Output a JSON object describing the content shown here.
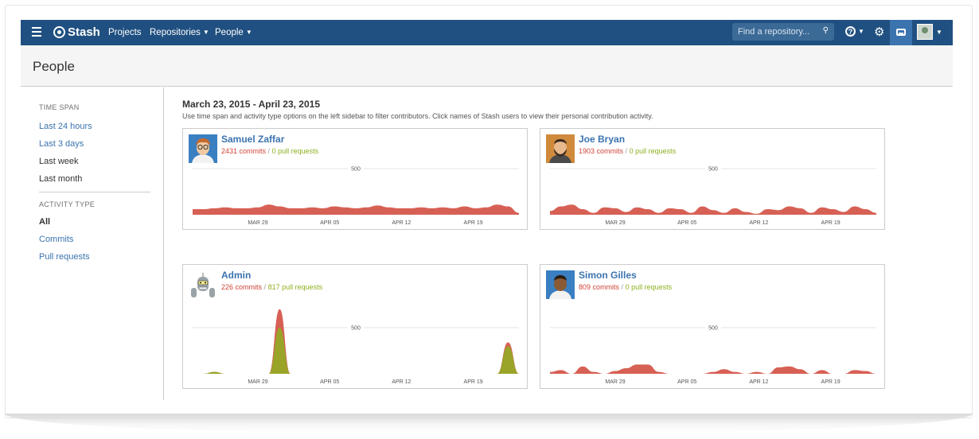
{
  "topbar": {
    "logo": "Stash",
    "nav": [
      "Projects",
      "Repositories",
      "People"
    ],
    "search_placeholder": "Find a repository...",
    "help_icon": "?",
    "colors": {
      "bar": "#205081",
      "active": "#3b73af"
    }
  },
  "page": {
    "title": "People"
  },
  "sidebar": {
    "timespan_heading": "TIME SPAN",
    "timespan": [
      "Last 24 hours",
      "Last 3 days",
      "Last week",
      "Last month"
    ],
    "timespan_active": "Last month",
    "activity_heading": "ACTIVITY TYPE",
    "activity": [
      "All",
      "Commits",
      "Pull requests"
    ],
    "activity_active": "All"
  },
  "main": {
    "date_range": "March 23, 2015 - April 23, 2015",
    "instructions": "Use time span and activity type options on the left sidebar to filter contributors. Click names of Stash users to view their personal contribution activity.",
    "separator": "/"
  },
  "contributors": [
    {
      "name": "Samuel Zaffar",
      "commits_text": "2431 commits",
      "prs_text": "0 pull requests",
      "avatar": "person-glasses-avatar"
    },
    {
      "name": "Joe Bryan",
      "commits_text": "1903 commits",
      "prs_text": "0 pull requests",
      "avatar": "person-beard-avatar"
    },
    {
      "name": "Admin",
      "commits_text": "226 commits",
      "prs_text": "817 pull requests",
      "avatar": "robot-avatar"
    },
    {
      "name": "Simon Gilles",
      "commits_text": "809 commits",
      "prs_text": "0 pull requests",
      "avatar": "person-dark-avatar"
    }
  ],
  "chart_data": [
    {
      "type": "area",
      "title": "Samuel Zaffar",
      "gridline": 500,
      "x_ticks": [
        "MAR 29",
        "APR 05",
        "APR 12",
        "APR 19"
      ],
      "series": [
        {
          "name": "commits",
          "color": "#d04437",
          "values": [
            60,
            60,
            70,
            80,
            70,
            70,
            80,
            110,
            90,
            70,
            70,
            80,
            70,
            90,
            80,
            70,
            80,
            100,
            80,
            70,
            70,
            80,
            70,
            80,
            70,
            90,
            70,
            80,
            110,
            90,
            20
          ]
        },
        {
          "name": "pull requests",
          "color": "#8eb021",
          "values": [
            0,
            0,
            0,
            0,
            0,
            0,
            0,
            0,
            0,
            0,
            0,
            0,
            0,
            0,
            0,
            0,
            0,
            0,
            0,
            0,
            0,
            0,
            0,
            0,
            0,
            0,
            0,
            0,
            0,
            0,
            0
          ]
        }
      ]
    },
    {
      "type": "area",
      "title": "Joe Bryan",
      "gridline": 500,
      "x_ticks": [
        "MAR 29",
        "APR 05",
        "APR 12",
        "APR 19"
      ],
      "series": [
        {
          "name": "commits",
          "color": "#d04437",
          "values": [
            40,
            90,
            110,
            60,
            20,
            80,
            70,
            30,
            80,
            60,
            20,
            70,
            60,
            20,
            90,
            50,
            20,
            70,
            30,
            10,
            60,
            50,
            90,
            70,
            20,
            80,
            60,
            30,
            90,
            60,
            20
          ]
        },
        {
          "name": "pull requests",
          "color": "#8eb021",
          "values": [
            0,
            0,
            0,
            0,
            0,
            0,
            0,
            0,
            0,
            0,
            0,
            0,
            0,
            0,
            0,
            0,
            0,
            0,
            0,
            0,
            0,
            0,
            0,
            0,
            0,
            0,
            0,
            0,
            0,
            0,
            0
          ]
        }
      ]
    },
    {
      "type": "area",
      "title": "Admin",
      "gridline": 500,
      "x_ticks": [
        "MAR 29",
        "APR 05",
        "APR 12",
        "APR 19"
      ],
      "series": [
        {
          "name": "commits",
          "color": "#d04437",
          "values": [
            0,
            0,
            20,
            0,
            0,
            0,
            0,
            0,
            700,
            0,
            0,
            0,
            0,
            0,
            0,
            0,
            0,
            0,
            0,
            0,
            0,
            0,
            0,
            0,
            0,
            0,
            0,
            0,
            0,
            340,
            0
          ]
        },
        {
          "name": "pull requests",
          "color": "#8eb021",
          "values": [
            0,
            0,
            20,
            0,
            0,
            0,
            0,
            0,
            500,
            0,
            0,
            0,
            0,
            0,
            0,
            0,
            0,
            0,
            0,
            0,
            0,
            0,
            0,
            0,
            0,
            0,
            0,
            0,
            0,
            300,
            0
          ]
        }
      ]
    },
    {
      "type": "area",
      "title": "Simon Gilles",
      "gridline": 500,
      "x_ticks": [
        "MAR 29",
        "APR 05",
        "APR 12",
        "APR 19"
      ],
      "series": [
        {
          "name": "commits",
          "color": "#d04437",
          "values": [
            20,
            40,
            0,
            80,
            20,
            0,
            30,
            60,
            100,
            100,
            20,
            0,
            0,
            0,
            0,
            20,
            50,
            20,
            0,
            20,
            0,
            70,
            80,
            50,
            0,
            40,
            0,
            0,
            40,
            30,
            0
          ]
        },
        {
          "name": "pull requests",
          "color": "#8eb021",
          "values": [
            0,
            0,
            0,
            0,
            0,
            0,
            0,
            0,
            0,
            0,
            0,
            0,
            0,
            0,
            0,
            0,
            0,
            0,
            0,
            0,
            0,
            0,
            0,
            0,
            0,
            0,
            0,
            0,
            0,
            0,
            0
          ]
        }
      ]
    }
  ]
}
